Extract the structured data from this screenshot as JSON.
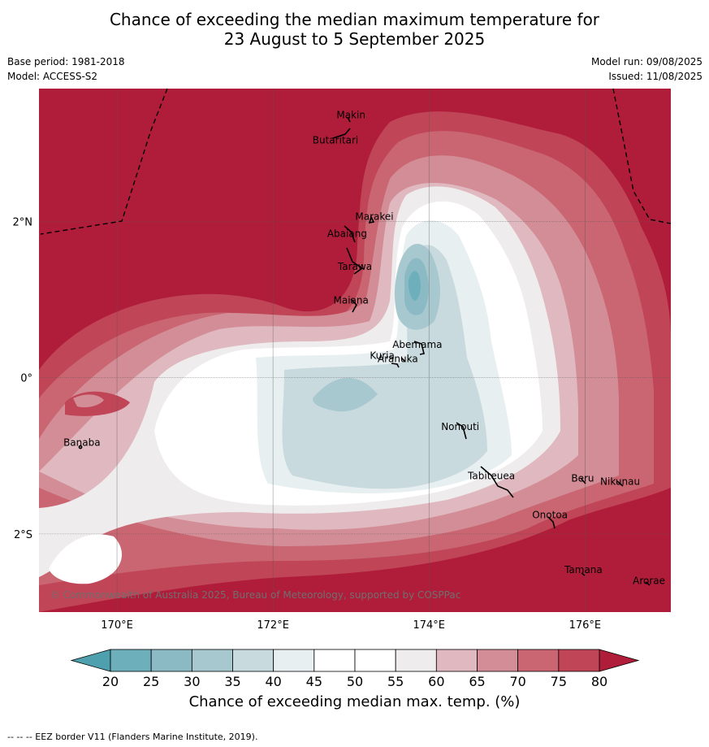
{
  "title": {
    "line1": "Chance of exceeding the median maximum temperature for",
    "line2": "23 August to 5 September 2025"
  },
  "meta": {
    "base_period": "Base period: 1981-2018",
    "model": "Model: ACCESS-S2",
    "model_run": "Model run: 09/08/2025",
    "issued": "Issued: 11/08/2025"
  },
  "map": {
    "extent": {
      "lon_min": 169.0,
      "lon_max": 177.1,
      "lat_min": -3.0,
      "lat_max": 3.7
    },
    "lon_ticks": [
      {
        "value": 170,
        "label": "170°E"
      },
      {
        "value": 172,
        "label": "172°E"
      },
      {
        "value": 174,
        "label": "174°E"
      },
      {
        "value": 176,
        "label": "176°E"
      }
    ],
    "lat_ticks": [
      {
        "value": 2,
        "label": "2°N"
      },
      {
        "value": 0,
        "label": "0°"
      },
      {
        "value": -2,
        "label": "2°S"
      }
    ],
    "places": [
      {
        "name": "Makin",
        "lon": 173.0,
        "lat": 3.32
      },
      {
        "name": "Butaritari",
        "lon": 172.8,
        "lat": 3.0
      },
      {
        "name": "Marakei",
        "lon": 173.3,
        "lat": 2.02
      },
      {
        "name": "Abaiang",
        "lon": 172.95,
        "lat": 1.8
      },
      {
        "name": "Tarawa",
        "lon": 173.05,
        "lat": 1.38
      },
      {
        "name": "Maiana",
        "lon": 173.0,
        "lat": 0.95
      },
      {
        "name": "Abemama",
        "lon": 173.85,
        "lat": 0.38
      },
      {
        "name": "Kuria",
        "lon": 173.4,
        "lat": 0.24
      },
      {
        "name": "Aranuka",
        "lon": 173.6,
        "lat": 0.2
      },
      {
        "name": "Nonouti",
        "lon": 174.4,
        "lat": -0.67
      },
      {
        "name": "Tabiteuea",
        "lon": 174.8,
        "lat": -1.3
      },
      {
        "name": "Beru",
        "lon": 175.97,
        "lat": -1.33
      },
      {
        "name": "Nikunau",
        "lon": 176.45,
        "lat": -1.37
      },
      {
        "name": "Onotoa",
        "lon": 175.55,
        "lat": -1.8
      },
      {
        "name": "Banaba",
        "lon": 169.55,
        "lat": -0.87
      },
      {
        "name": "Tamana",
        "lon": 175.98,
        "lat": -2.5
      },
      {
        "name": "Arorae",
        "lon": 176.82,
        "lat": -2.64
      }
    ],
    "copyright": "© Commonwealth of Australia 2025, Bureau of Meteorology, supported by COSPPac"
  },
  "colorbar": {
    "ticks": [
      "20",
      "25",
      "30",
      "35",
      "40",
      "45",
      "50",
      "55",
      "60",
      "65",
      "70",
      "75",
      "80"
    ],
    "colors": [
      "#6dafbb",
      "#8bbac5",
      "#a8c8cf",
      "#c9dade",
      "#e8eff1",
      "#ffffff",
      "#ffffff",
      "#eeeced",
      "#e0b9c0",
      "#d38d97",
      "#c96672",
      "#c04556"
    ],
    "low_color": "#4fa0ae",
    "high_color": "#b01d3a",
    "title": "Chance of exceeding median max. temp. (%)"
  },
  "footnote": "--  --  -- EEZ border V11 (Flanders Marine Institute, 2019)."
}
